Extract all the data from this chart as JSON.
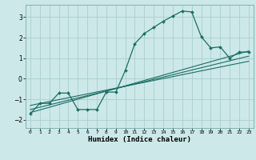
{
  "xlabel": "Humidex (Indice chaleur)",
  "ylabel": "",
  "background_color": "#cce8e8",
  "grid_color": "#aacece",
  "line_color": "#1a6e64",
  "xlim": [
    -0.5,
    23.5
  ],
  "ylim": [
    -2.4,
    3.6
  ],
  "xticks": [
    0,
    1,
    2,
    3,
    4,
    5,
    6,
    7,
    8,
    9,
    10,
    11,
    12,
    13,
    14,
    15,
    16,
    17,
    18,
    19,
    20,
    21,
    22,
    23
  ],
  "yticks": [
    -2,
    -1,
    0,
    1,
    2,
    3
  ],
  "series1_x": [
    0,
    1,
    2,
    3,
    4,
    5,
    6,
    7,
    8,
    9,
    10,
    11,
    12,
    13,
    14,
    15,
    16,
    17,
    18,
    19,
    20,
    21,
    22,
    23
  ],
  "series1_y": [
    -1.7,
    -1.2,
    -1.2,
    -0.7,
    -0.7,
    -1.5,
    -1.5,
    -1.5,
    -0.65,
    -0.65,
    0.4,
    1.7,
    2.2,
    2.5,
    2.8,
    3.05,
    3.3,
    3.25,
    2.05,
    1.5,
    1.55,
    1.0,
    1.3,
    1.3
  ],
  "series2_x": [
    0,
    23
  ],
  "series2_y": [
    -1.65,
    1.35
  ],
  "series3_x": [
    0,
    23
  ],
  "series3_y": [
    -1.5,
    1.1
  ],
  "series4_x": [
    0,
    23
  ],
  "series4_y": [
    -1.3,
    0.85
  ]
}
